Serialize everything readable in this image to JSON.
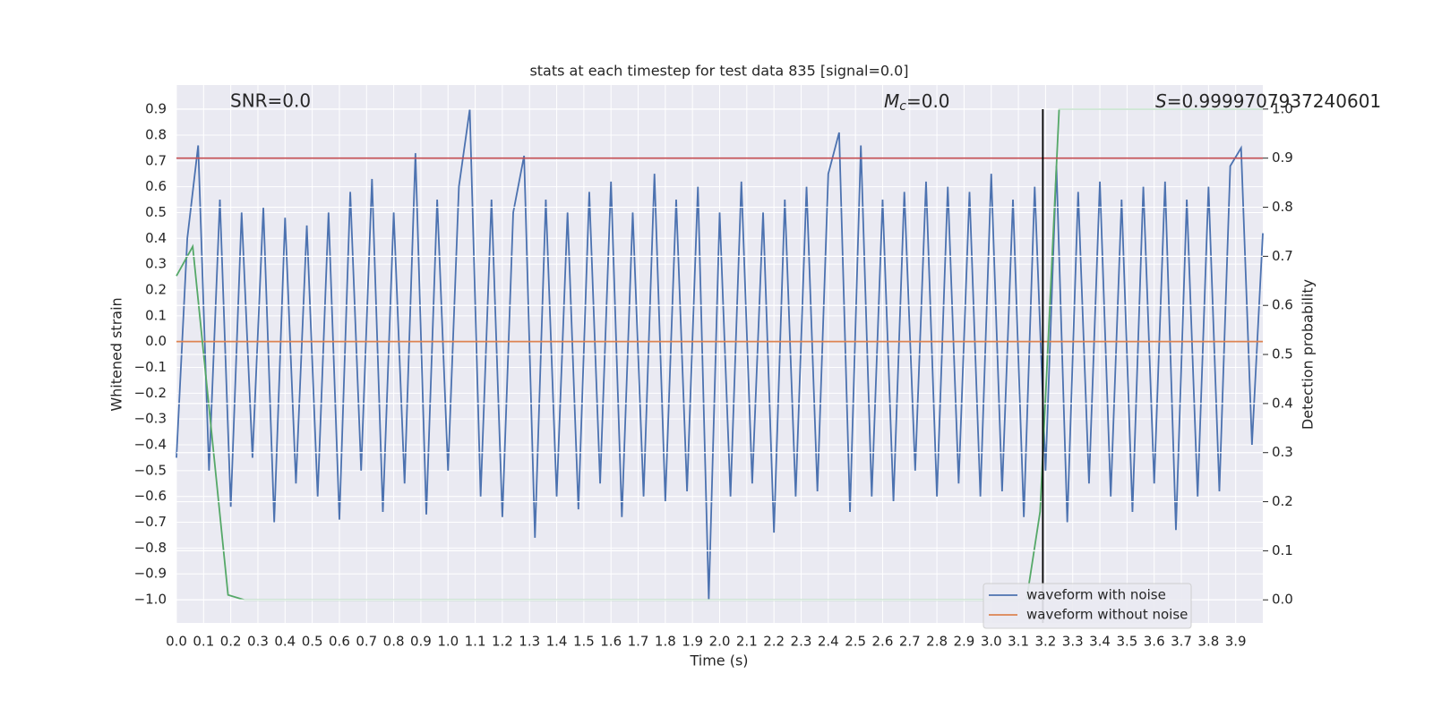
{
  "chart_data": {
    "type": "line",
    "title": "stats at each timestep for test data 835 [signal=0.0]",
    "xlabel": "Time (s)",
    "ylabel": "Whitened strain",
    "y2label": "Detection probability",
    "xlim": [
      0,
      4.0
    ],
    "ylim": [
      -1.09,
      0.994
    ],
    "y2lim": [
      -0.047,
      1.049
    ],
    "grid": true,
    "legend": "lower right",
    "xticks": [
      {
        "value": 0,
        "label": "0.0"
      },
      0.1,
      0.2,
      0.3,
      0.4,
      0.5,
      0.6,
      0.7,
      0.8,
      0.9,
      {
        "value": 1,
        "label": "1.0"
      },
      1.1,
      1.2,
      1.3,
      1.4,
      1.5,
      1.6,
      1.7,
      1.8,
      1.9,
      {
        "value": 2,
        "label": "2.0"
      },
      2.1,
      2.2,
      2.3,
      2.4,
      2.5,
      2.6,
      2.7,
      2.8,
      2.9,
      {
        "value": 3,
        "label": "3.0"
      },
      3.1,
      3.2,
      3.3,
      3.4,
      3.5,
      3.6,
      3.7,
      3.8,
      3.9
    ],
    "yticks": [
      {
        "value": -1,
        "label": "−1.0"
      },
      {
        "value": -0.9,
        "label": "−0.9"
      },
      {
        "value": -0.8,
        "label": "−0.8"
      },
      {
        "value": -0.7,
        "label": "−0.7"
      },
      {
        "value": -0.6,
        "label": "−0.6"
      },
      {
        "value": -0.5,
        "label": "−0.5"
      },
      {
        "value": -0.4,
        "label": "−0.4"
      },
      {
        "value": -0.3,
        "label": "−0.3"
      },
      {
        "value": -0.2,
        "label": "−0.2"
      },
      {
        "value": -0.1,
        "label": "−0.1"
      },
      {
        "value": 0,
        "label": "0.0"
      },
      0.1,
      0.2,
      0.3,
      0.4,
      0.5,
      0.6,
      0.7,
      0.8,
      0.9
    ],
    "y2ticks": [
      {
        "value": 0,
        "label": "0.0"
      },
      0.1,
      0.2,
      0.3,
      0.4,
      0.5,
      0.6,
      0.7,
      0.8,
      0.9,
      {
        "value": 1,
        "label": "1.0"
      }
    ],
    "series": [
      {
        "name": "waveform with noise",
        "color": "#4c72b0",
        "x": [
          0,
          0.04,
          0.08,
          0.12,
          0.16,
          0.2,
          0.24,
          0.28,
          0.32,
          0.36,
          0.4,
          0.44,
          0.48,
          0.52,
          0.56,
          0.6,
          0.64,
          0.68,
          0.72,
          0.76,
          0.8,
          0.84,
          0.88,
          0.92,
          0.96,
          1.0,
          1.04,
          1.08,
          1.12,
          1.16,
          1.2,
          1.24,
          1.28,
          1.32,
          1.36,
          1.4,
          1.44,
          1.48,
          1.52,
          1.56,
          1.6,
          1.64,
          1.68,
          1.72,
          1.76,
          1.8,
          1.84,
          1.88,
          1.92,
          1.96,
          2.0,
          2.04,
          2.08,
          2.12,
          2.16,
          2.2,
          2.24,
          2.28,
          2.32,
          2.36,
          2.4,
          2.44,
          2.48,
          2.52,
          2.56,
          2.6,
          2.64,
          2.68,
          2.72,
          2.76,
          2.8,
          2.84,
          2.88,
          2.92,
          2.96,
          3.0,
          3.04,
          3.08,
          3.12,
          3.16,
          3.2,
          3.24,
          3.28,
          3.32,
          3.36,
          3.4,
          3.44,
          3.48,
          3.52,
          3.56,
          3.6,
          3.64,
          3.68,
          3.72,
          3.76,
          3.8,
          3.84,
          3.88,
          3.92,
          3.96,
          4.0
        ],
        "values": [
          -0.45,
          0.4,
          0.76,
          -0.5,
          0.55,
          -0.64,
          0.5,
          -0.45,
          0.52,
          -0.7,
          0.48,
          -0.55,
          0.45,
          -0.6,
          0.5,
          -0.69,
          0.58,
          -0.5,
          0.63,
          -0.66,
          0.5,
          -0.55,
          0.73,
          -0.67,
          0.55,
          -0.5,
          0.6,
          0.9,
          -0.6,
          0.55,
          -0.68,
          0.5,
          0.72,
          -0.76,
          0.55,
          -0.6,
          0.5,
          -0.65,
          0.58,
          -0.55,
          0.62,
          -0.68,
          0.5,
          -0.6,
          0.65,
          -0.62,
          0.55,
          -0.58,
          0.6,
          -1.0,
          0.5,
          -0.6,
          0.62,
          -0.55,
          0.5,
          -0.74,
          0.55,
          -0.6,
          0.6,
          -0.58,
          0.65,
          0.81,
          -0.66,
          0.76,
          -0.6,
          0.55,
          -0.62,
          0.58,
          -0.5,
          0.62,
          -0.6,
          0.6,
          -0.55,
          0.58,
          -0.6,
          0.65,
          -0.58,
          0.55,
          -0.68,
          0.6,
          -0.5,
          0.68,
          -0.7,
          0.58,
          -0.55,
          0.62,
          -0.6,
          0.55,
          -0.66,
          0.6,
          -0.55,
          0.62,
          -0.73,
          0.55,
          -0.6,
          0.6,
          -0.58,
          0.68,
          0.75,
          -0.4,
          0.42
        ]
      },
      {
        "name": "waveform without noise",
        "color": "#dd8452",
        "x": [
          0,
          4.0
        ],
        "values": [
          0,
          0
        ]
      }
    ],
    "probability": {
      "axis": "y2",
      "color": "#55a868",
      "x": [
        0,
        0.06,
        0.19,
        0.25,
        3.13,
        3.18,
        3.25,
        4.0
      ],
      "values": [
        0.66,
        0.72,
        0.01,
        0,
        0,
        0.18,
        1.0,
        1.0
      ]
    },
    "threshold": {
      "axis": "y2",
      "value": 0.9,
      "color": "#c44e52"
    },
    "vline": {
      "x": 3.19,
      "color": "#000000"
    },
    "annotations": [
      {
        "text": "SNR=0.0"
      },
      {
        "symbol": "M",
        "subscript": "c",
        "text": "=0.0"
      },
      {
        "symbol": "S",
        "text": "=0.9999707937240601"
      }
    ]
  }
}
